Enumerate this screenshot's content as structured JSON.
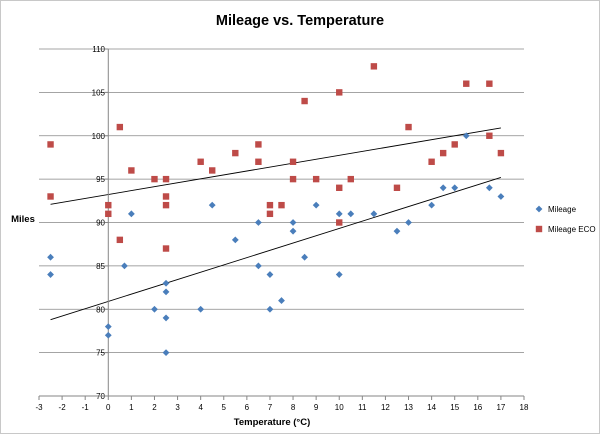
{
  "chart_data": {
    "type": "scatter",
    "title": "Mileage vs. Temperature",
    "xlabel": "Temperature (°C)",
    "ylabel": "Miles",
    "xlim": [
      -3,
      18
    ],
    "ylim": [
      70,
      110
    ],
    "x_ticks": [
      -3,
      -2,
      -1,
      0,
      1,
      2,
      3,
      4,
      5,
      6,
      7,
      8,
      9,
      10,
      11,
      12,
      13,
      14,
      15,
      16,
      17,
      18
    ],
    "y_ticks": [
      70,
      75,
      80,
      85,
      90,
      95,
      100,
      105,
      110
    ],
    "grid": {
      "horizontal": true,
      "vertical": false
    },
    "legend_position": "right",
    "series": [
      {
        "name": "Mileage",
        "marker": "diamond",
        "color": "#4a7ebb",
        "points": [
          [
            -2.5,
            86
          ],
          [
            -2.5,
            84
          ],
          [
            0,
            78
          ],
          [
            0,
            77
          ],
          [
            0.7,
            85
          ],
          [
            1,
            91
          ],
          [
            2,
            80
          ],
          [
            2.5,
            83
          ],
          [
            2.5,
            82
          ],
          [
            2.5,
            79
          ],
          [
            2.5,
            75
          ],
          [
            4,
            80
          ],
          [
            4.5,
            92
          ],
          [
            5.5,
            88
          ],
          [
            6.5,
            90
          ],
          [
            6.5,
            85
          ],
          [
            7,
            84
          ],
          [
            7,
            80
          ],
          [
            7.5,
            81
          ],
          [
            8,
            90
          ],
          [
            8,
            89
          ],
          [
            8.5,
            86
          ],
          [
            9,
            92
          ],
          [
            10,
            91
          ],
          [
            10,
            84
          ],
          [
            10.5,
            91
          ],
          [
            11.5,
            91
          ],
          [
            12.5,
            89
          ],
          [
            13,
            90
          ],
          [
            14,
            92
          ],
          [
            14.5,
            94
          ],
          [
            15,
            94
          ],
          [
            15.5,
            100
          ],
          [
            16.5,
            94
          ],
          [
            17,
            93
          ]
        ],
        "trendline": [
          [
            -2.5,
            78.8
          ],
          [
            17,
            95.2
          ]
        ]
      },
      {
        "name": "Mileage ECO",
        "marker": "square",
        "color": "#be4b48",
        "points": [
          [
            -2.5,
            99
          ],
          [
            -2.5,
            93
          ],
          [
            0,
            92
          ],
          [
            0,
            91
          ],
          [
            0.5,
            101
          ],
          [
            0.5,
            88
          ],
          [
            1,
            96
          ],
          [
            2,
            95
          ],
          [
            2.5,
            95
          ],
          [
            2.5,
            93
          ],
          [
            2.5,
            92
          ],
          [
            2.5,
            87
          ],
          [
            4,
            97
          ],
          [
            4.5,
            96
          ],
          [
            5.5,
            98
          ],
          [
            6.5,
            99
          ],
          [
            6.5,
            97
          ],
          [
            7,
            92
          ],
          [
            7,
            91
          ],
          [
            7.5,
            92
          ],
          [
            8,
            97
          ],
          [
            8,
            95
          ],
          [
            8.5,
            104
          ],
          [
            9,
            95
          ],
          [
            10,
            105
          ],
          [
            10,
            94
          ],
          [
            10,
            90
          ],
          [
            10.5,
            95
          ],
          [
            11.5,
            108
          ],
          [
            12.5,
            94
          ],
          [
            13,
            101
          ],
          [
            14,
            97
          ],
          [
            14.5,
            98
          ],
          [
            15,
            99
          ],
          [
            15.5,
            106
          ],
          [
            16.5,
            106
          ],
          [
            16.5,
            100
          ],
          [
            17,
            98
          ]
        ],
        "trendline": [
          [
            -2.5,
            92.1
          ],
          [
            17,
            100.9
          ]
        ]
      }
    ]
  }
}
